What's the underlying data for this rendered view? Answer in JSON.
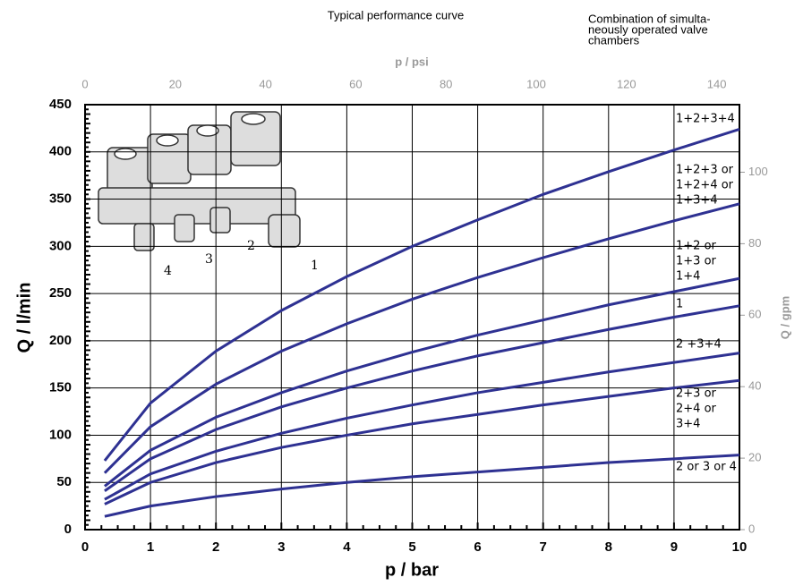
{
  "chart_data": {
    "type": "line",
    "title": "Typical performance curve",
    "header": [
      "Combination of simulta-",
      "neously operated valve",
      "chambers"
    ],
    "x_label": "p / bar",
    "y_label": "Q / l/min",
    "x2_label": "p / psi",
    "y2_label": "Q / gpm",
    "x": [
      0.3,
      1,
      2,
      3,
      4,
      5,
      6,
      7,
      8,
      9,
      10
    ],
    "xlim": [
      0,
      10
    ],
    "xticks": [
      0,
      1,
      2,
      3,
      4,
      5,
      6,
      7,
      8,
      9,
      10
    ],
    "ylim": [
      0,
      450
    ],
    "yticks": [
      0,
      50,
      100,
      150,
      200,
      250,
      300,
      350,
      400,
      450
    ],
    "x2lim": [
      0,
      145.04
    ],
    "x2ticks": [
      0,
      20,
      40,
      60,
      80,
      100,
      120,
      140
    ],
    "y2lim": [
      0,
      118.9
    ],
    "y2ticks": [
      0,
      20,
      40,
      60,
      80,
      100
    ],
    "grid": true,
    "image_labels": [
      "4",
      "3",
      "2",
      "1"
    ],
    "series": [
      {
        "label": [
          "1+2+3+4"
        ],
        "color": "#2e3192",
        "values": [
          73,
          134,
          189,
          232,
          268,
          300,
          328,
          355,
          379,
          402,
          424
        ]
      },
      {
        "label": [
          "1+2+3 or",
          "1+2+4 or",
          "1+3+4"
        ],
        "color": "#2e3192",
        "values": [
          60,
          109,
          154,
          189,
          218,
          244,
          267,
          288,
          308,
          327,
          345
        ]
      },
      {
        "label": [
          "1+2 or",
          "1+3 or",
          "1+4"
        ],
        "color": "#2e3192",
        "values": [
          46,
          84,
          119,
          145,
          168,
          188,
          206,
          222,
          238,
          252,
          266
        ]
      },
      {
        "label": [
          "1"
        ],
        "color": "#2e3192",
        "values": [
          41,
          75,
          106,
          130,
          150,
          168,
          184,
          198,
          212,
          225,
          237
        ]
      },
      {
        "label": [
          "2 +3+4"
        ],
        "color": "#2e3192",
        "values": [
          32,
          59,
          83,
          102,
          118,
          132,
          145,
          156,
          167,
          177,
          187
        ]
      },
      {
        "label": [
          "2+3 or",
          "2+4 or",
          "3+4"
        ],
        "color": "#2e3192",
        "values": [
          27,
          50,
          71,
          87,
          100,
          112,
          122,
          132,
          141,
          150,
          158
        ]
      },
      {
        "label": [
          "2 or 3 or 4"
        ],
        "color": "#2e3192",
        "values": [
          14,
          25,
          35,
          43,
          50,
          56,
          61,
          66,
          71,
          75,
          79
        ]
      }
    ]
  }
}
